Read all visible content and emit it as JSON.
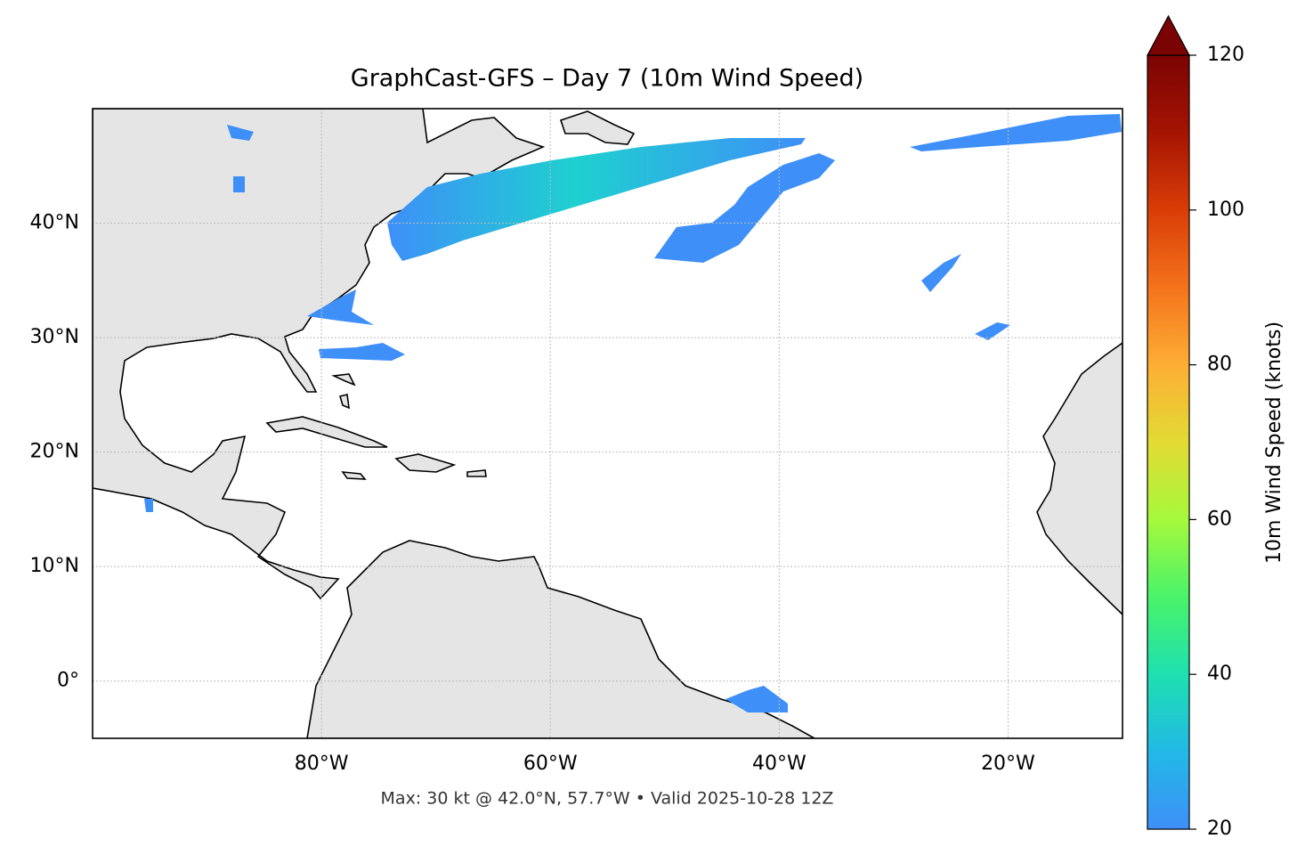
{
  "chart_data": {
    "type": "map",
    "title": "GraphCast-GFS – Day 7 (10m Wind Speed)",
    "footnote": "Max: 30 kt @ 42.0°N, 57.7°W • Valid 2025-10-28 12Z",
    "xlim": [
      -100,
      -10
    ],
    "ylim": [
      -5,
      50
    ],
    "xticks": [
      {
        "value": -80,
        "label": "80°W"
      },
      {
        "value": -60,
        "label": "60°W"
      },
      {
        "value": -40,
        "label": "40°W"
      },
      {
        "value": -20,
        "label": "20°W"
      }
    ],
    "yticks": [
      {
        "value": 0,
        "label": "0°"
      },
      {
        "value": 10,
        "label": "10°N"
      },
      {
        "value": 20,
        "label": "20°N"
      },
      {
        "value": 30,
        "label": "30°N"
      },
      {
        "value": 40,
        "label": "40°N"
      }
    ],
    "grid": true,
    "colorbar": {
      "label": "10m Wind Speed (knots)",
      "range": [
        20,
        120
      ],
      "ticks": [
        20,
        40,
        60,
        80,
        100,
        120
      ],
      "colors": [
        "#3e8ff8",
        "#22b9e6",
        "#1ee0b0",
        "#4af36a",
        "#a6f93c",
        "#e3db34",
        "#fdae35",
        "#f4731c",
        "#d93d07",
        "#a51403",
        "#7a0403"
      ],
      "extend": "max"
    }
  }
}
